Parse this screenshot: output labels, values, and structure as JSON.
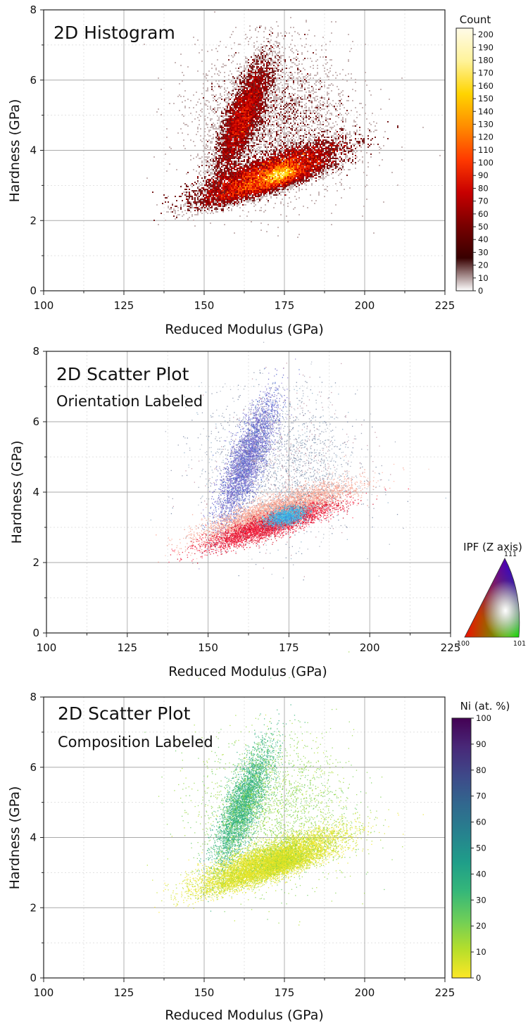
{
  "chart_data": [
    {
      "type": "heatmap",
      "title": "2D Histogram",
      "xlabel": "Reduced Modulus (GPa)",
      "ylabel": "Hardness (GPa)",
      "xlim": [
        100,
        225
      ],
      "ylim": [
        0,
        8
      ],
      "x_ticks": [
        "100",
        "125",
        "150",
        "175",
        "200",
        "225"
      ],
      "y_ticks": [
        "0",
        "2",
        "4",
        "6",
        "8"
      ],
      "grid": true,
      "clusters": [
        {
          "x": 162,
          "y": 4.9,
          "sx": 4.5,
          "sy": 0.55,
          "weight": 0.23,
          "tilt": 0.15,
          "category": "count-medium"
        },
        {
          "x": 171,
          "y": 3.45,
          "sx": 11,
          "sy": 0.22,
          "weight": 0.33,
          "tilt": 0.03,
          "category": "count-high"
        },
        {
          "x": 169,
          "y": 3.05,
          "sx": 10,
          "sy": 0.16,
          "weight": 0.22,
          "tilt": 0.028,
          "category": "count-high"
        },
        {
          "x": 174,
          "y": 3.32,
          "sx": 3,
          "sy": 0.12,
          "weight": 0.08,
          "tilt": 0.02,
          "category": "count-peak"
        },
        {
          "x": 172,
          "y": 4.8,
          "sx": 12,
          "sy": 1.05,
          "weight": 0.14,
          "tilt": 0.0,
          "category": "count-sparse"
        }
      ],
      "colorbar": {
        "title": "Count",
        "min": 0,
        "max": 205,
        "ticks": [
          "0",
          "10",
          "20",
          "30",
          "40",
          "50",
          "60",
          "70",
          "80",
          "90",
          "100",
          "110",
          "120",
          "130",
          "140",
          "150",
          "160",
          "170",
          "180",
          "190",
          "200"
        ],
        "colors": [
          "#ffffff",
          "#380000",
          "#7a0000",
          "#c80000",
          "#ff3a00",
          "#ff8c00",
          "#ffd400",
          "#fff39a",
          "#fffbe8"
        ]
      }
    },
    {
      "type": "scatter",
      "title": "2D Scatter Plot",
      "subtitle": "Orientation Labeled",
      "xlabel": "Reduced Modulus (GPa)",
      "ylabel": "Hardness (GPa)",
      "xlim": [
        100,
        225
      ],
      "ylim": [
        0,
        8
      ],
      "x_ticks": [
        "100",
        "125",
        "150",
        "175",
        "200",
        "225"
      ],
      "y_ticks": [
        "0",
        "2",
        "4",
        "6",
        "8"
      ],
      "grid": true,
      "clusters": [
        {
          "x": 162,
          "y": 4.9,
          "sx": 4.5,
          "sy": 0.55,
          "weight": 0.23,
          "tilt": 0.15,
          "category": "near-111"
        },
        {
          "x": 171,
          "y": 3.45,
          "sx": 11,
          "sy": 0.22,
          "weight": 0.33,
          "tilt": 0.03,
          "category": "near-101-100"
        },
        {
          "x": 169,
          "y": 3.05,
          "sx": 10,
          "sy": 0.16,
          "weight": 0.22,
          "tilt": 0.028,
          "category": "near-100"
        },
        {
          "x": 174,
          "y": 3.32,
          "sx": 3,
          "sy": 0.12,
          "weight": 0.08,
          "tilt": 0.02,
          "category": "near-101"
        },
        {
          "x": 172,
          "y": 4.8,
          "sx": 12,
          "sy": 1.05,
          "weight": 0.14,
          "tilt": 0.0,
          "category": "mixed"
        }
      ],
      "legend": {
        "title": "IPF (Z axis)",
        "placement": "right",
        "corners": [
          "100",
          "101",
          "111"
        ],
        "colors": {
          "100": "#ff0000",
          "101": "#00ff00",
          "111": "#0000ff"
        }
      }
    },
    {
      "type": "scatter",
      "title": "2D Scatter Plot",
      "subtitle": "Composition Labeled",
      "xlabel": "Reduced Modulus (GPa)",
      "ylabel": "Hardness (GPa)",
      "xlim": [
        100,
        225
      ],
      "ylim": [
        0,
        8
      ],
      "x_ticks": [
        "100",
        "125",
        "150",
        "175",
        "200",
        "225"
      ],
      "y_ticks": [
        "0",
        "2",
        "4",
        "6",
        "8"
      ],
      "grid": true,
      "clusters": [
        {
          "x": 162,
          "y": 4.9,
          "sx": 4.5,
          "sy": 0.55,
          "weight": 0.23,
          "tilt": 0.15,
          "ni_at_pct": 35
        },
        {
          "x": 171,
          "y": 3.45,
          "sx": 11,
          "sy": 0.22,
          "weight": 0.33,
          "tilt": 0.03,
          "ni_at_pct": 5
        },
        {
          "x": 169,
          "y": 3.05,
          "sx": 10,
          "sy": 0.16,
          "weight": 0.22,
          "tilt": 0.028,
          "ni_at_pct": 5
        },
        {
          "x": 174,
          "y": 3.32,
          "sx": 3,
          "sy": 0.12,
          "weight": 0.08,
          "tilt": 0.02,
          "ni_at_pct": 6
        },
        {
          "x": 172,
          "y": 4.8,
          "sx": 12,
          "sy": 1.05,
          "weight": 0.14,
          "tilt": 0.0,
          "ni_at_pct": 18
        }
      ],
      "colorbar": {
        "title": "Ni (at. %)",
        "min": 0,
        "max": 100,
        "ticks": [
          "0",
          "10",
          "20",
          "30",
          "40",
          "50",
          "60",
          "70",
          "80",
          "90",
          "100"
        ],
        "colors": [
          "#fde725",
          "#b5de2b",
          "#6ece58",
          "#35b779",
          "#1f9e89",
          "#26828e",
          "#31688e",
          "#3e4989",
          "#482878",
          "#440154"
        ]
      }
    }
  ],
  "colors": {
    "orientation_palette": {
      "near-111": "#6b63c6",
      "near-101-100": "#f3a08c",
      "near-100": "#e0102a",
      "near-101": "#3ec3dc",
      "mixed": "#8890a8"
    },
    "histogram_palette": {
      "count-sparse": "#6b1010",
      "count-medium": "#3a0000",
      "count-high": "#b00000",
      "count-peak": "#ffb000"
    }
  }
}
